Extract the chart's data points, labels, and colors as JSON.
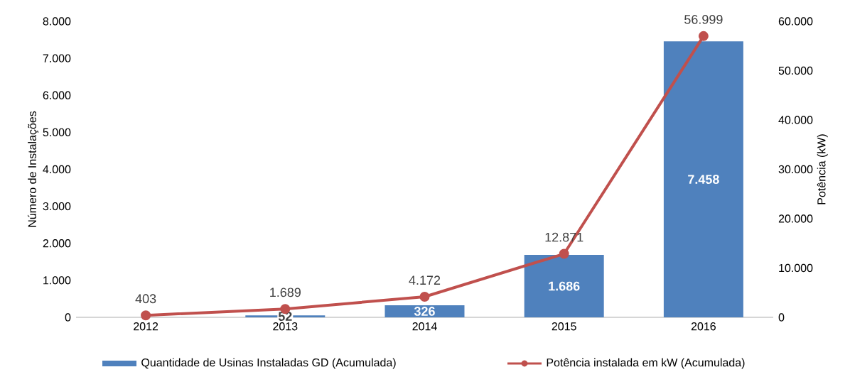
{
  "chart_data": {
    "type": "bar",
    "categories": [
      "2012",
      "2013",
      "2014",
      "2015",
      "2016"
    ],
    "ylabel": "Número de Instalações",
    "y2label": "Potência (kW)",
    "ylim": [
      0,
      8000
    ],
    "yticks": [
      {
        "value": 0,
        "label": "0"
      },
      {
        "value": 1000,
        "label": "1.000"
      },
      {
        "value": 2000,
        "label": "2.000"
      },
      {
        "value": 3000,
        "label": "3.000"
      },
      {
        "value": 4000,
        "label": "4.000"
      },
      {
        "value": 5000,
        "label": "5.000"
      },
      {
        "value": 6000,
        "label": "6.000"
      },
      {
        "value": 7000,
        "label": "7.000"
      },
      {
        "value": 8000,
        "label": "8.000"
      }
    ],
    "y2lim": [
      0,
      60000
    ],
    "y2ticks": [
      {
        "value": 0,
        "label": "0"
      },
      {
        "value": 10000,
        "label": "10.000"
      },
      {
        "value": 20000,
        "label": "20.000"
      },
      {
        "value": 30000,
        "label": "30.000"
      },
      {
        "value": 40000,
        "label": "40.000"
      },
      {
        "value": 50000,
        "label": "50.000"
      },
      {
        "value": 60000,
        "label": "60.000"
      }
    ],
    "legend": "bottom",
    "series": [
      {
        "name": "Quantidade de Usinas Instaladas GD (Acumulada)",
        "color": "#4f81bd",
        "values": [
          null,
          52,
          326,
          1686,
          7458
        ],
        "value_labels": [
          null,
          "52",
          "326",
          "1.686",
          "7.458"
        ]
      },
      {
        "name": "Potência instalada em kW (Acumulada)",
        "type": "line",
        "axis": "y2",
        "color": "#c0504d",
        "marker": "circle",
        "values": [
          403,
          1689,
          4172,
          12871,
          56999
        ],
        "value_labels": [
          "403",
          "1.689",
          "4.172",
          "12.871",
          "56.999"
        ]
      }
    ]
  }
}
